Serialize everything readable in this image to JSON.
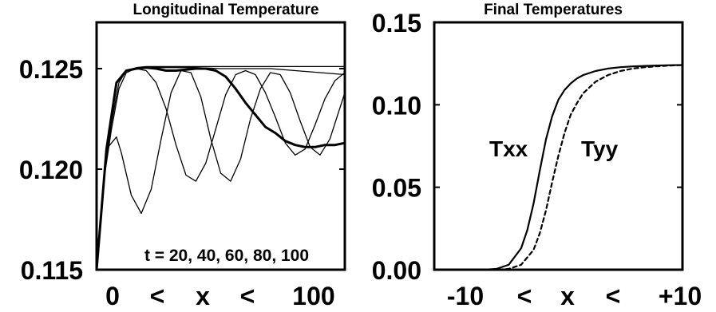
{
  "chart_data": [
    {
      "type": "line",
      "title": "Longitudinal Temperature",
      "xlabel_tokens": [
        "0",
        "<",
        "x",
        "<",
        "100"
      ],
      "ylabel": "",
      "xlim": [
        0,
        100
      ],
      "ylim": [
        0.115,
        0.1273
      ],
      "yticks": [
        0.115,
        0.12,
        0.125
      ],
      "ytick_labels": [
        "0.115",
        "0.120",
        "0.125"
      ],
      "annotation": "t = 20, 40, 60, 80, 100",
      "grid": false,
      "series": [
        {
          "x": [
            0,
            3,
            6,
            9,
            12,
            16,
            20,
            25,
            30,
            40,
            50,
            60,
            70,
            80,
            90,
            100
          ],
          "y": [
            0.115,
            0.1195,
            0.1223,
            0.1243,
            0.1249,
            0.12505,
            0.1251,
            0.1251,
            0.1251,
            0.1251,
            0.1251,
            0.1251,
            0.1251,
            0.1251,
            0.1251,
            0.1251
          ]
        },
        {
          "x": [
            0,
            3,
            6,
            9,
            12,
            16,
            20,
            25,
            30,
            40,
            50,
            60,
            70,
            80,
            90,
            100
          ],
          "y": [
            0.115,
            0.1195,
            0.122,
            0.124,
            0.1248,
            0.12502,
            0.12505,
            0.12505,
            0.12505,
            0.12505,
            0.125,
            0.125,
            0.125,
            0.1249,
            0.1248,
            0.1247
          ]
        },
        {
          "x": [
            0,
            4,
            8,
            10,
            14,
            18,
            22,
            26,
            30,
            34,
            38,
            42,
            46,
            50,
            54,
            58,
            62,
            66,
            70,
            74,
            78,
            82,
            86,
            90,
            94,
            100
          ],
          "y": [
            0.115,
            0.121,
            0.1216,
            0.1208,
            0.1187,
            0.1178,
            0.119,
            0.1215,
            0.1238,
            0.1249,
            0.1248,
            0.1236,
            0.1215,
            0.1198,
            0.1194,
            0.1205,
            0.1225,
            0.124,
            0.1248,
            0.1247,
            0.1238,
            0.1224,
            0.1211,
            0.1207,
            0.1215,
            0.1238
          ]
        },
        {
          "x": [
            0,
            4,
            8,
            12,
            16,
            20,
            24,
            28,
            32,
            36,
            40,
            44,
            48,
            52,
            56,
            60,
            64,
            68,
            72,
            76,
            80,
            84,
            88,
            92,
            96,
            100
          ],
          "y": [
            0.115,
            0.121,
            0.1243,
            0.1249,
            0.125,
            0.1249,
            0.1243,
            0.123,
            0.1212,
            0.1197,
            0.1194,
            0.1203,
            0.122,
            0.1237,
            0.1247,
            0.1249,
            0.1247,
            0.1238,
            0.1226,
            0.1213,
            0.1207,
            0.121,
            0.1222,
            0.1235,
            0.1244,
            0.1248
          ]
        },
        {
          "x": [
            0,
            4,
            8,
            12,
            16,
            20,
            24,
            28,
            32,
            36,
            40,
            44,
            48,
            52,
            56,
            60,
            64,
            68,
            72,
            76,
            80,
            84,
            88,
            92,
            96,
            100
          ],
          "y": [
            0.115,
            0.121,
            0.1243,
            0.1249,
            0.125,
            0.12505,
            0.125,
            0.1249,
            0.1249,
            0.12495,
            0.125,
            0.125,
            0.1249,
            0.1246,
            0.124,
            0.1233,
            0.1227,
            0.1221,
            0.1218,
            0.1214,
            0.1212,
            0.1211,
            0.1211,
            0.1212,
            0.1212,
            0.1213
          ],
          "thick": true
        }
      ]
    },
    {
      "type": "line",
      "title": "Final Temperatures",
      "xlabel_tokens": [
        "-10",
        "<",
        "x",
        "<",
        "+10"
      ],
      "ylabel": "",
      "xlim": [
        -10,
        10
      ],
      "ylim": [
        0,
        0.15
      ],
      "yticks": [
        0.0,
        0.05,
        0.1,
        0.15
      ],
      "ytick_labels": [
        "0.00",
        "0.05",
        "0.10",
        "0.15"
      ],
      "grid": false,
      "series": [
        {
          "name": "Txx",
          "x": [
            -10,
            -6,
            -5,
            -4,
            -3,
            -2.5,
            -2,
            -1.5,
            -1,
            -0.5,
            0,
            0.5,
            1,
            1.5,
            2,
            3,
            4,
            5,
            6,
            7,
            8,
            9,
            10
          ],
          "y": [
            0,
            0,
            0.0005,
            0.003,
            0.013,
            0.024,
            0.04,
            0.06,
            0.079,
            0.093,
            0.103,
            0.109,
            0.113,
            0.116,
            0.118,
            0.1205,
            0.122,
            0.1228,
            0.1233,
            0.1236,
            0.1238,
            0.124,
            0.1241
          ],
          "dash": false
        },
        {
          "name": "Tyy",
          "x": [
            -10,
            -5,
            -4,
            -3,
            -2,
            -1.5,
            -1,
            -0.5,
            0,
            0.5,
            1,
            1.5,
            2,
            3,
            4,
            5,
            6,
            7,
            8,
            9,
            10
          ],
          "y": [
            0,
            0,
            0.0005,
            0.003,
            0.012,
            0.022,
            0.036,
            0.053,
            0.069,
            0.083,
            0.094,
            0.101,
            0.107,
            0.114,
            0.118,
            0.1205,
            0.122,
            0.1228,
            0.1234,
            0.1238,
            0.1241
          ],
          "dash": true
        }
      ]
    }
  ]
}
